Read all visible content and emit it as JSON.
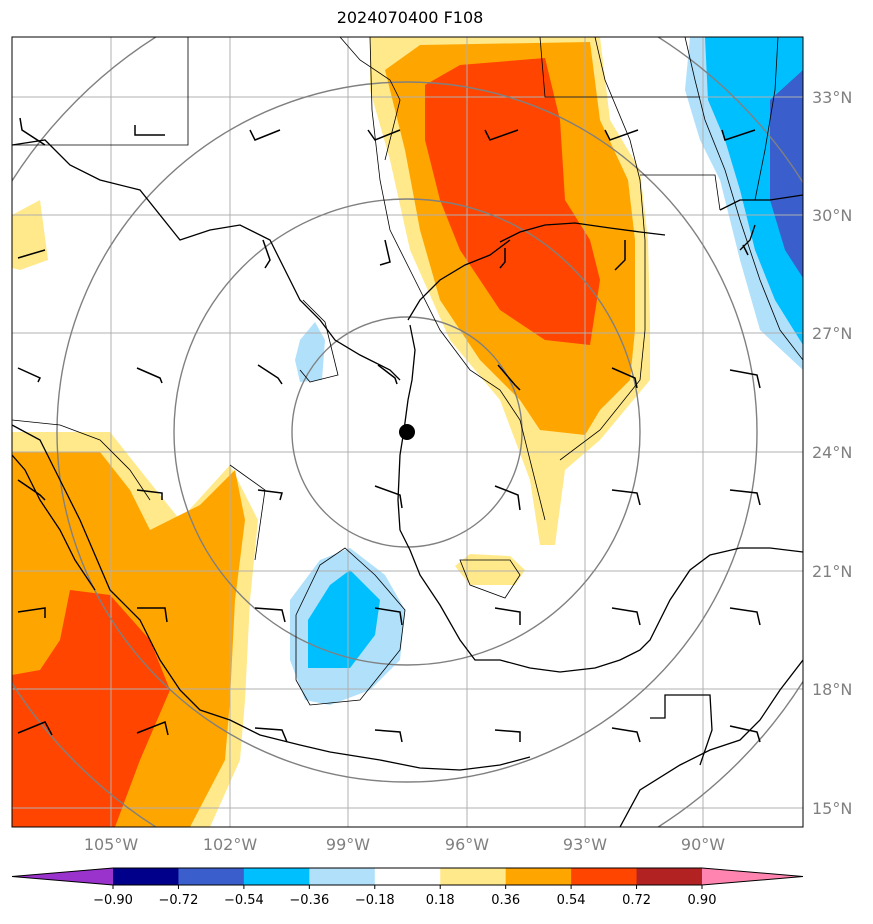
{
  "title": "2024070400 F108",
  "map": {
    "lon_labels": [
      "105°W",
      "102°W",
      "99°W",
      "96°W",
      "93°W",
      "90°W"
    ],
    "lat_labels": [
      "33°N",
      "30°N",
      "27°N",
      "24°N",
      "21°N",
      "18°N",
      "15°N"
    ],
    "center_marker": "storm-center"
  },
  "colorbar": {
    "ticks": [
      "−0.90",
      "−0.72",
      "−0.54",
      "−0.36",
      "−0.18",
      "0.18",
      "0.36",
      "0.54",
      "0.72",
      "0.90"
    ],
    "colors": [
      "#9933cc",
      "#00008b",
      "#3a5fcd",
      "#00bfff",
      "#b0e0fa",
      "#ffffff",
      "#ffe98a",
      "#ffa500",
      "#ff4500",
      "#b22222",
      "#ff85b0"
    ]
  }
}
